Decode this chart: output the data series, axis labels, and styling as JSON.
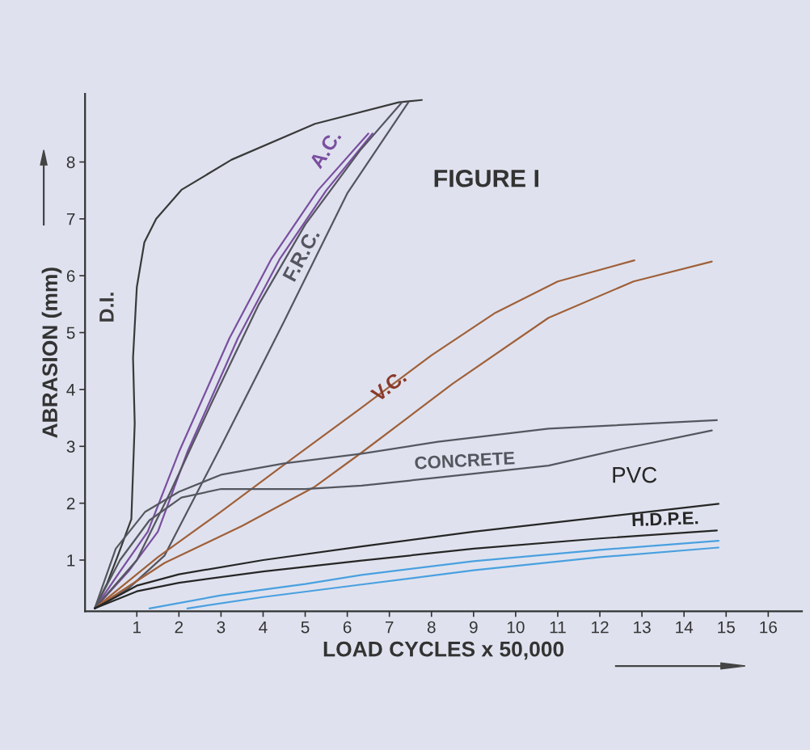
{
  "chart_data": {
    "type": "line",
    "title": "FIGURE I",
    "xlabel": "LOAD CYCLES x 50,000",
    "ylabel": "ABRASION (mm)",
    "xlim": [
      -0.23,
      16.8
    ],
    "ylim": [
      0.1,
      9.2
    ],
    "xticks": [
      1,
      2,
      3,
      4,
      5,
      6,
      7,
      8,
      9,
      10,
      11,
      12,
      13,
      14,
      15,
      16
    ],
    "yticks": [
      1,
      2,
      3,
      4,
      5,
      6,
      7,
      8
    ],
    "grid": false,
    "marker": "none",
    "line_style": "solid",
    "series": [
      {
        "name": "D.I.",
        "color": "#3a3a3a",
        "x": [
          0,
          0.3,
          0.55,
          0.87,
          0.95,
          0.91,
          1.0,
          1.18,
          1.46,
          2.06,
          3.25,
          5.23,
          7.22,
          7.77
        ],
        "values": [
          0.15,
          0.6,
          1.08,
          1.72,
          3.4,
          4.56,
          5.8,
          6.59,
          7.0,
          7.51,
          8.04,
          8.67,
          9.05,
          9.09
        ]
      },
      {
        "name": "A.C.",
        "color": "#7a4fa0",
        "x": [
          0,
          0.6,
          1.26,
          2.0,
          3.2,
          4.2,
          5.3,
          6.5
        ],
        "values": [
          0.15,
          0.8,
          1.5,
          2.9,
          4.9,
          6.3,
          7.5,
          8.5
        ]
      },
      {
        "color": "#7a4fa0",
        "x": [
          0,
          0.8,
          1.5,
          2.2,
          3.4,
          4.4,
          5.5,
          6.6
        ],
        "values": [
          0.15,
          0.8,
          1.5,
          2.9,
          4.9,
          6.3,
          7.5,
          8.5
        ]
      },
      {
        "name": "F.R.C.",
        "color": "#555560",
        "x": [
          0,
          1.0,
          1.8,
          2.8,
          3.9,
          5.0,
          6.3,
          7.3
        ],
        "values": [
          0.15,
          1.0,
          2.2,
          3.8,
          5.5,
          6.9,
          8.2,
          9.05
        ]
      },
      {
        "color": "#555560",
        "x": [
          0,
          0.8,
          1.66,
          3.0,
          4.5,
          6.0,
          7.45
        ],
        "values": [
          0.15,
          0.5,
          1.08,
          3.0,
          5.2,
          7.45,
          9.05
        ]
      },
      {
        "name": "V.C.",
        "color": "#a0603a",
        "x": [
          0,
          1.5,
          3.0,
          4.76,
          6.34,
          8,
          9.52,
          11,
          12.82
        ],
        "values": [
          0.15,
          1.05,
          1.85,
          2.82,
          3.68,
          4.6,
          5.35,
          5.9,
          6.27
        ]
      },
      {
        "color": "#a0603a",
        "x": [
          0,
          1.66,
          3.5,
          5.23,
          6.34,
          8.5,
          10.78,
          12.8,
          14.66
        ],
        "values": [
          0.15,
          0.95,
          1.6,
          2.29,
          2.89,
          4.1,
          5.26,
          5.9,
          6.25
        ]
      },
      {
        "name": "CONCRETE",
        "color": "#55575f",
        "x": [
          0,
          0.5,
          1.2,
          2.0,
          3.0,
          4.5,
          6.34,
          8.15,
          10.78,
          14.78
        ],
        "values": [
          0.15,
          1.2,
          1.85,
          2.2,
          2.5,
          2.7,
          2.87,
          3.08,
          3.31,
          3.46
        ]
      },
      {
        "color": "#55575f",
        "x": [
          0,
          0.6,
          1.3,
          2.06,
          3.0,
          5,
          6.34,
          8.15,
          10.78,
          12.5,
          14.66
        ],
        "values": [
          0.15,
          1.0,
          1.7,
          2.1,
          2.25,
          2.25,
          2.31,
          2.45,
          2.66,
          2.95,
          3.28
        ]
      },
      {
        "name": "PVC",
        "color": "#262626",
        "x": [
          0,
          1,
          2,
          4,
          6.34,
          9,
          12,
          14.82
        ],
        "values": [
          0.15,
          0.55,
          0.75,
          1.0,
          1.24,
          1.5,
          1.75,
          1.99
        ]
      },
      {
        "name": "H.D.P.E.",
        "color": "#262626",
        "x": [
          0,
          1,
          2,
          4,
          6.34,
          9,
          12,
          14.78
        ],
        "values": [
          0.15,
          0.45,
          0.6,
          0.8,
          0.99,
          1.2,
          1.38,
          1.52
        ]
      },
      {
        "color": "#4aa0e0",
        "x": [
          1.3,
          3,
          5,
          6.34,
          9,
          12,
          14.82
        ],
        "values": [
          0.15,
          0.38,
          0.58,
          0.74,
          0.98,
          1.18,
          1.34
        ]
      },
      {
        "color": "#4aa0e0",
        "x": [
          2.2,
          4,
          6.34,
          9,
          12,
          14.82
        ],
        "values": [
          0.15,
          0.35,
          0.57,
          0.82,
          1.05,
          1.22
        ]
      }
    ]
  }
}
